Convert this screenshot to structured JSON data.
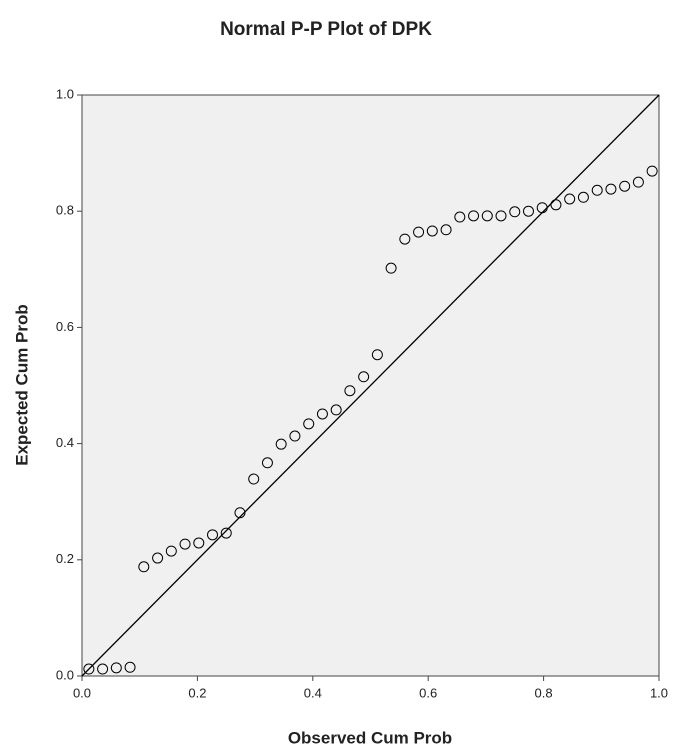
{
  "chart_data": {
    "type": "scatter",
    "title": "Normal P-P Plot of DPK",
    "x_label": "Observed Cum Prob",
    "y_label": "Expected Cum Prob",
    "x": [
      0.0119,
      0.0357,
      0.0595,
      0.0833,
      0.1071,
      0.131,
      0.1548,
      0.1786,
      0.2024,
      0.2262,
      0.25,
      0.2738,
      0.2976,
      0.3214,
      0.3452,
      0.369,
      0.3929,
      0.4167,
      0.4405,
      0.4643,
      0.4881,
      0.5119,
      0.5357,
      0.5595,
      0.5833,
      0.6071,
      0.631,
      0.6548,
      0.6786,
      0.7024,
      0.7262,
      0.75,
      0.7738,
      0.7976,
      0.8214,
      0.8452,
      0.869,
      0.8929,
      0.9167,
      0.9405,
      0.9643,
      0.9881
    ],
    "values": [
      0.012,
      0.012,
      0.014,
      0.015,
      0.188,
      0.203,
      0.215,
      0.227,
      0.229,
      0.243,
      0.246,
      0.281,
      0.339,
      0.367,
      0.399,
      0.413,
      0.434,
      0.451,
      0.458,
      0.491,
      0.515,
      0.553,
      0.702,
      0.752,
      0.764,
      0.766,
      0.768,
      0.79,
      0.792,
      0.792,
      0.792,
      0.799,
      0.8,
      0.806,
      0.811,
      0.821,
      0.824,
      0.836,
      0.838,
      0.843,
      0.85,
      0.869
    ],
    "xlim": [
      0,
      1
    ],
    "ylim": [
      0,
      1
    ],
    "xticks": [
      {
        "value": 0,
        "label": "0.0"
      },
      {
        "value": 0.2,
        "label": "0.2"
      },
      {
        "value": 0.4,
        "label": "0.4"
      },
      {
        "value": 0.6,
        "label": "0.6"
      },
      {
        "value": 0.8,
        "label": "0.8"
      },
      {
        "value": 1,
        "label": "1.0"
      }
    ],
    "yticks": [
      {
        "value": 0,
        "label": "0.0"
      },
      {
        "value": 0.2,
        "label": "0.2"
      },
      {
        "value": 0.4,
        "label": "0.4"
      },
      {
        "value": 0.6,
        "label": "0.6"
      },
      {
        "value": 0.8,
        "label": "0.8"
      },
      {
        "value": 1,
        "label": "1.0"
      }
    ],
    "marker_color": "#000000",
    "background": "#f0f0f0"
  }
}
